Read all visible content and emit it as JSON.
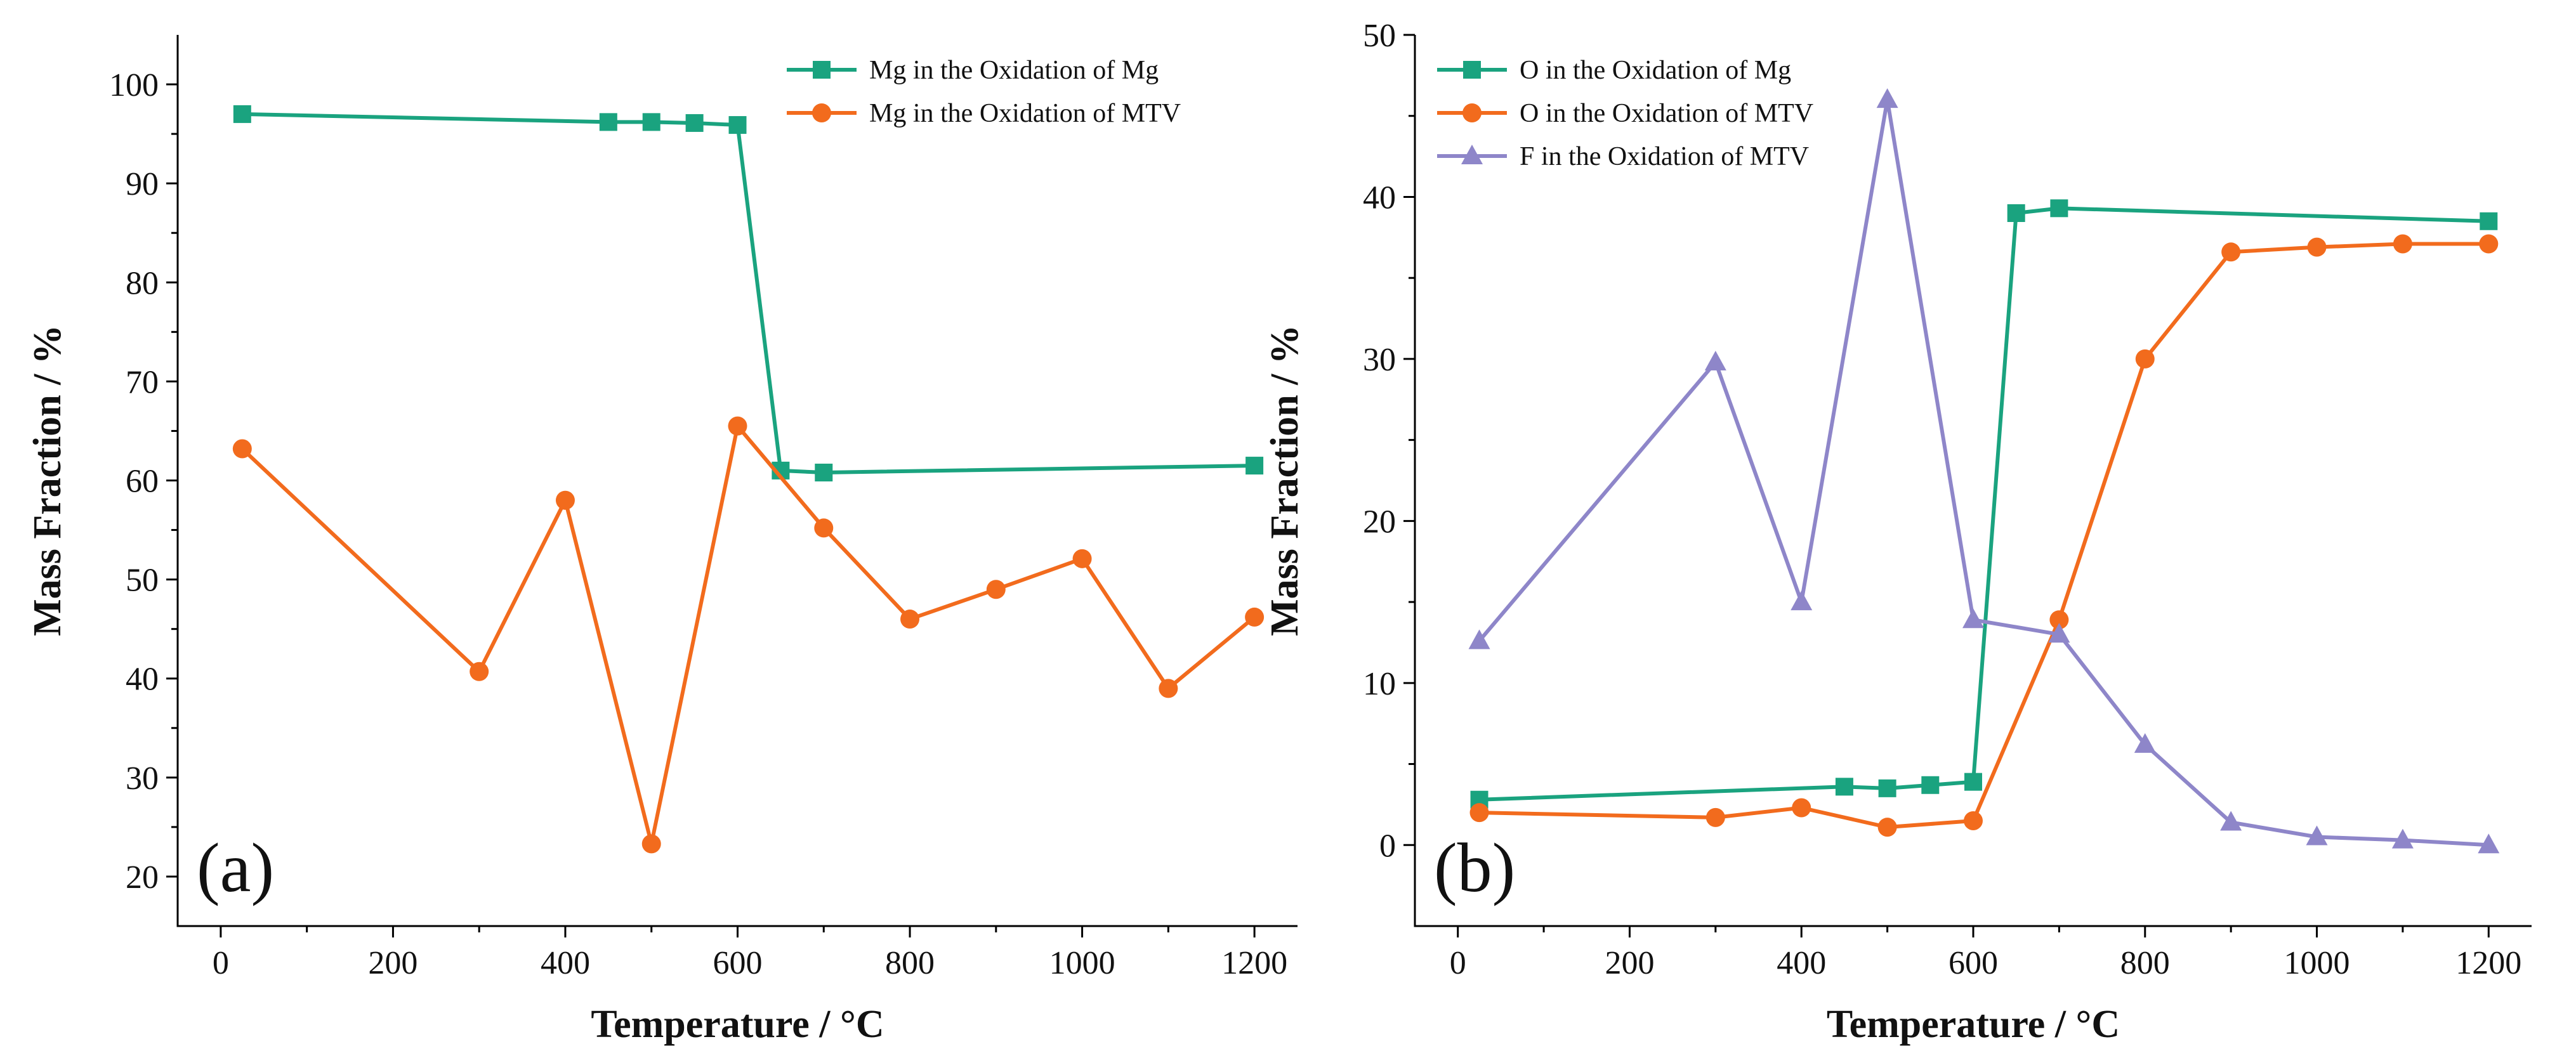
{
  "chart_data": [
    {
      "type": "line",
      "panel_label": "(a)",
      "xlabel": "Temperature / °C",
      "ylabel": "Mass Fraction / %",
      "xlim": [
        -50,
        1250
      ],
      "ylim": [
        15,
        105
      ],
      "xticks": [
        0,
        200,
        400,
        600,
        800,
        1000,
        1200
      ],
      "yticks": [
        20,
        30,
        40,
        50,
        60,
        70,
        80,
        90,
        100
      ],
      "legend_position": "top-right",
      "series": [
        {
          "name": "Mg in the Oxidation of Mg",
          "color": "#1aa37f",
          "marker": "square",
          "x": [
            25,
            450,
            500,
            550,
            600,
            650,
            700,
            1200
          ],
          "y": [
            97.0,
            96.2,
            96.2,
            96.1,
            95.9,
            61.0,
            60.8,
            61.5
          ]
        },
        {
          "name": "Mg in the Oxidation of MTV",
          "color": "#f26b1d",
          "marker": "circle",
          "x": [
            25,
            300,
            400,
            500,
            600,
            700,
            800,
            900,
            1000,
            1100,
            1200
          ],
          "y": [
            63.2,
            40.7,
            58.0,
            23.3,
            65.5,
            55.2,
            46.0,
            49.0,
            52.1,
            39.0,
            46.2
          ]
        }
      ]
    },
    {
      "type": "line",
      "panel_label": "(b)",
      "xlabel": "Temperature / °C",
      "ylabel": "Mass Fraction / %",
      "xlim": [
        -50,
        1250
      ],
      "ylim": [
        -5,
        50
      ],
      "xticks": [
        0,
        200,
        400,
        600,
        800,
        1000,
        1200
      ],
      "yticks": [
        0,
        10,
        20,
        30,
        40,
        50
      ],
      "legend_position": "top-left",
      "series": [
        {
          "name": "O in the Oxidation of Mg",
          "color": "#1aa37f",
          "marker": "square",
          "x": [
            25,
            450,
            500,
            550,
            600,
            650,
            700,
            1200
          ],
          "y": [
            2.8,
            3.6,
            3.5,
            3.7,
            3.9,
            39.0,
            39.3,
            38.5
          ]
        },
        {
          "name": "O in the Oxidation of MTV",
          "color": "#f26b1d",
          "marker": "circle",
          "x": [
            25,
            300,
            400,
            500,
            600,
            700,
            800,
            900,
            1000,
            1100,
            1200
          ],
          "y": [
            2.0,
            1.7,
            2.3,
            1.1,
            1.5,
            13.9,
            30.0,
            36.6,
            36.9,
            37.1,
            37.1
          ]
        },
        {
          "name": "F in the Oxidation of MTV",
          "color": "#8e86c9",
          "marker": "triangle",
          "x": [
            25,
            300,
            400,
            500,
            600,
            700,
            800,
            900,
            1000,
            1100,
            1200
          ],
          "y": [
            12.6,
            29.8,
            15.0,
            46.0,
            13.9,
            13.0,
            6.2,
            1.4,
            0.5,
            0.3,
            0.0
          ]
        }
      ]
    }
  ]
}
